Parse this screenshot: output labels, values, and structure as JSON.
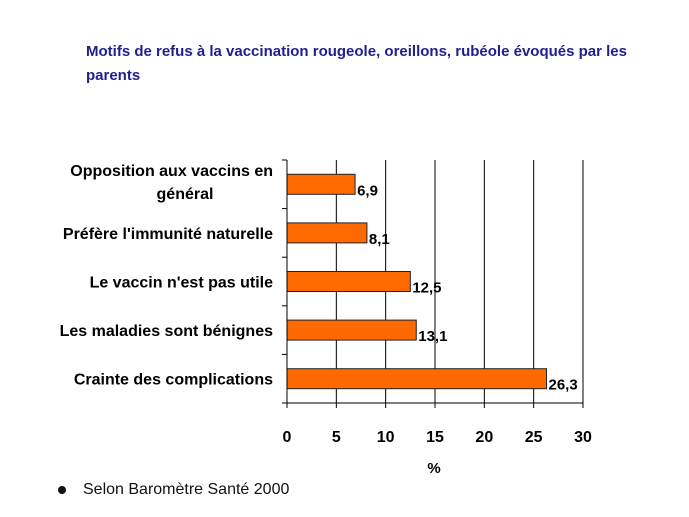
{
  "title": "Motifs de refus à la vaccination rougeole, oreillons, rubéole évoqués par les parents",
  "footnote": "Selon Baromètre Santé 2000",
  "colors": {
    "bar": "#ff6a00",
    "bar_stroke": "#222222",
    "title": "#1f1f8f"
  },
  "chart_data": {
    "type": "bar",
    "orientation": "horizontal",
    "categories": [
      [
        "Opposition aux vaccins en",
        "général"
      ],
      [
        "Préfère l'immunité naturelle"
      ],
      [
        "Le vaccin n'est pas utile"
      ],
      [
        "Les maladies sont bénignes"
      ],
      [
        "Crainte des complications"
      ]
    ],
    "values": [
      6.9,
      8.1,
      12.5,
      13.1,
      26.3
    ],
    "value_labels": [
      "6,9",
      "8,1",
      "12,5",
      "13,1",
      "26,3"
    ],
    "xlabel": "%",
    "xlim": [
      0,
      30
    ],
    "xticks": [
      "0",
      "5",
      "10",
      "15",
      "20",
      "25",
      "30"
    ],
    "grid": true
  }
}
